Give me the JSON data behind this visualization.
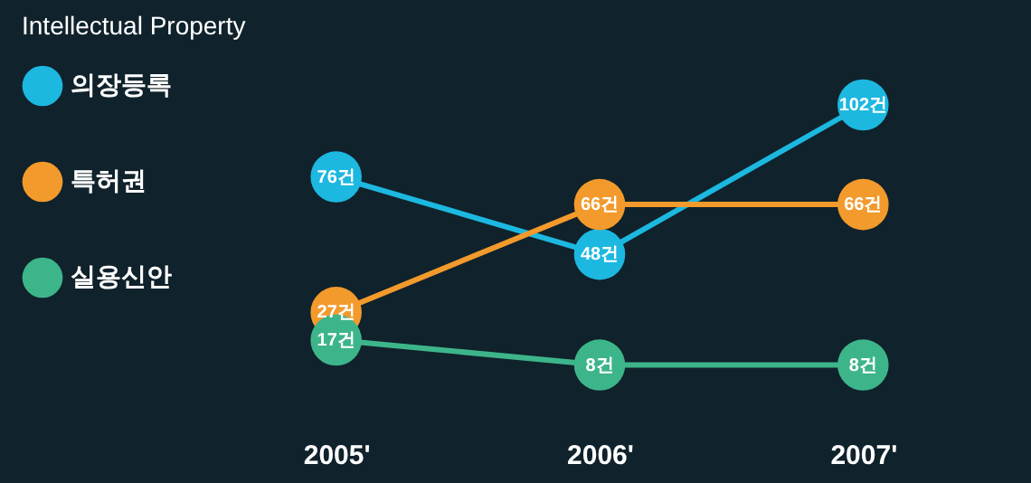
{
  "chart_data": {
    "type": "line",
    "title": "Intellectual Property",
    "categories": [
      "2005'",
      "2006'",
      "2007'"
    ],
    "marker": "circle",
    "line_style": "solid",
    "legend": "left",
    "grid": false,
    "tick_labels": "x",
    "series": [
      {
        "name": "의장등록",
        "color": "#1cb8e0",
        "values": [
          76,
          48,
          102
        ],
        "value_labels": [
          "76건",
          "48건",
          "102건"
        ]
      },
      {
        "name": "특허권",
        "color": "#f39a2c",
        "values": [
          27,
          66,
          66
        ],
        "value_labels": [
          "27건",
          "66건",
          "66건"
        ]
      },
      {
        "name": "실용신안",
        "color": "#3db58a",
        "values": [
          17,
          8,
          8
        ],
        "value_labels": [
          "17건",
          "8건",
          "8건"
        ]
      }
    ]
  }
}
